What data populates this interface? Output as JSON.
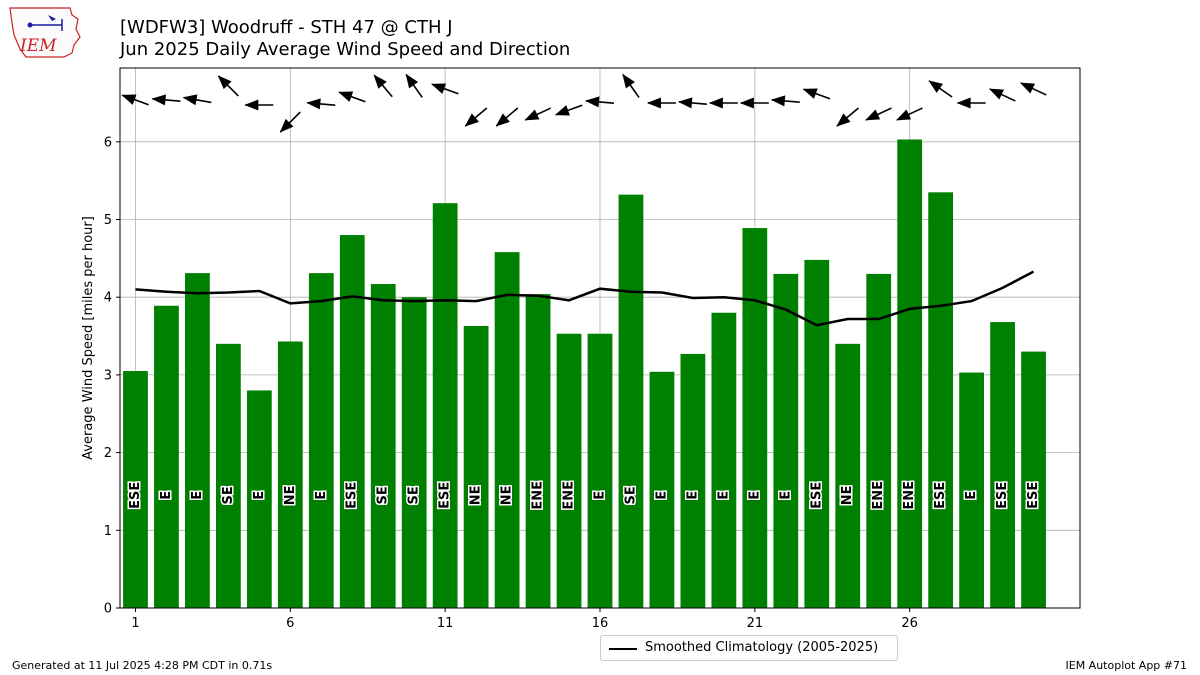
{
  "title": "[WDFW3] Woodruff - STH 47 @ CTH J",
  "subtitle": "Jun 2025 Daily Average Wind Speed and Direction",
  "footer_left": "Generated at 11 Jul 2025 4:28 PM CDT in 0.71s",
  "footer_right": "IEM Autoplot App #71",
  "logo_text": "IEM",
  "colors": {
    "bar": "#008000",
    "climo": "#000000",
    "grid": "#b0b0b0",
    "logo": "#cc2222"
  },
  "chart_data": {
    "type": "bar",
    "x": [
      1,
      2,
      3,
      4,
      5,
      6,
      7,
      8,
      9,
      10,
      11,
      12,
      13,
      14,
      15,
      16,
      17,
      18,
      19,
      20,
      21,
      22,
      23,
      24,
      25,
      26,
      27,
      28,
      29,
      30
    ],
    "values": [
      3.05,
      3.89,
      4.31,
      3.4,
      2.8,
      3.43,
      4.31,
      4.8,
      4.17,
      4.0,
      5.21,
      3.63,
      4.58,
      4.04,
      3.53,
      3.53,
      5.32,
      3.04,
      3.27,
      3.8,
      4.89,
      4.3,
      4.48,
      3.4,
      4.3,
      6.03,
      5.35,
      3.03,
      3.68,
      3.3
    ],
    "direction_labels": [
      "ESE",
      "E",
      "E",
      "SE",
      "E",
      "NE",
      "E",
      "ESE",
      "SE",
      "SE",
      "ESE",
      "NE",
      "NE",
      "ENE",
      "ENE",
      "E",
      "SE",
      "E",
      "E",
      "E",
      "E",
      "E",
      "ESE",
      "NE",
      "ENE",
      "ENE",
      "ESE",
      "E",
      "ESE",
      "ESE"
    ],
    "direction_deg": [
      110,
      95,
      100,
      135,
      90,
      45,
      95,
      110,
      140,
      145,
      110,
      50,
      50,
      65,
      70,
      95,
      145,
      90,
      95,
      90,
      90,
      95,
      110,
      50,
      65,
      65,
      125,
      90,
      115,
      115
    ],
    "climatology": {
      "name": "Smoothed Climatology (2005-2025)",
      "values": [
        4.1,
        4.07,
        4.05,
        4.06,
        4.08,
        3.92,
        3.95,
        4.01,
        3.96,
        3.95,
        3.96,
        3.95,
        4.03,
        4.02,
        3.96,
        4.11,
        4.07,
        4.06,
        3.99,
        4.0,
        3.96,
        3.84,
        3.64,
        3.72,
        3.72,
        3.85,
        3.89,
        3.95,
        4.12,
        4.33
      ]
    },
    "ylabel": "Average Wind Speed [miles per hour]",
    "xlabel": "",
    "ylim": [
      0,
      6.95
    ],
    "xlim": [
      0.5,
      31.5
    ],
    "xticks": [
      1,
      6,
      11,
      16,
      21,
      26
    ],
    "yticks": [
      0,
      1,
      2,
      3,
      4,
      5,
      6
    ],
    "grid": true,
    "legend_position": "bottom-center"
  }
}
